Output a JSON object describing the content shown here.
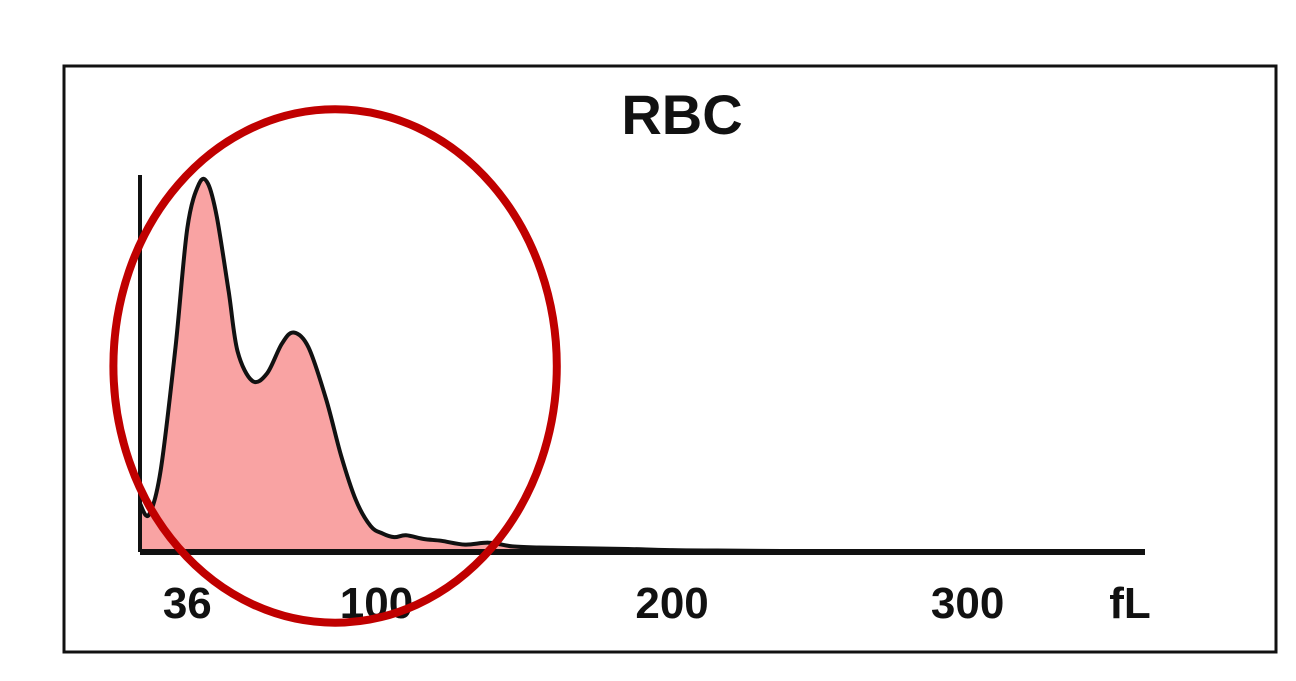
{
  "chart_data": {
    "type": "area",
    "title": "RBC",
    "x_unit": "fL",
    "xlim": [
      20,
      360
    ],
    "ylim": [
      0,
      1
    ],
    "x_ticks": [
      36,
      100,
      200,
      300
    ],
    "grid": false,
    "fill_color": "#f9a3a3",
    "line_color": "#111111",
    "highlight_color": "#c00000",
    "highlight": {
      "shape": "ellipse",
      "x_range": [
        11,
        161
      ],
      "y_range": [
        -0.19,
        1.19
      ]
    },
    "series": [
      {
        "x": [
          20,
          23,
          27,
          32,
          36,
          40,
          43,
          46,
          50,
          53,
          58,
          63,
          68,
          72,
          77,
          83,
          88,
          93,
          98,
          102,
          106,
          110,
          116,
          122,
          130,
          138,
          146,
          155,
          170,
          185,
          200,
          215,
          230,
          250,
          280,
          310,
          360
        ],
        "y": [
          0.13,
          0.1,
          0.22,
          0.55,
          0.87,
          0.99,
          0.99,
          0.9,
          0.7,
          0.54,
          0.46,
          0.48,
          0.56,
          0.59,
          0.55,
          0.41,
          0.26,
          0.14,
          0.07,
          0.05,
          0.04,
          0.045,
          0.035,
          0.03,
          0.02,
          0.025,
          0.015,
          0.012,
          0.01,
          0.008,
          0.005,
          0.004,
          0.003,
          0.002,
          0.001,
          0.0005,
          0
        ]
      }
    ]
  }
}
